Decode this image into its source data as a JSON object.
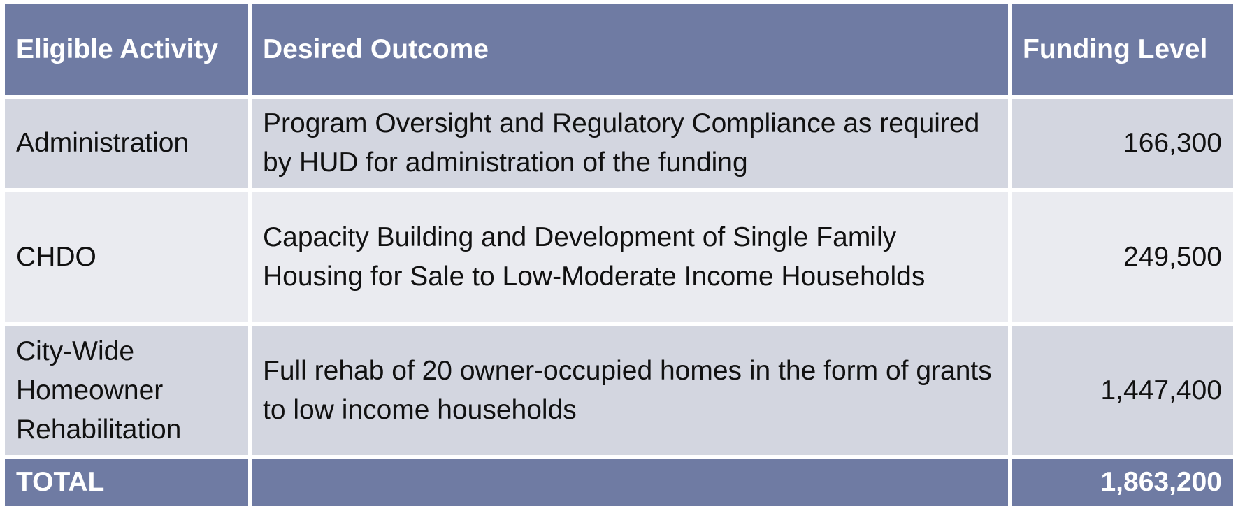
{
  "table": {
    "header": [
      "Eligible Activity",
      "Desired Outcome",
      "Funding Level"
    ],
    "rows": [
      [
        "Administration",
        "Program Oversight and Regulatory Compliance as required by HUD for administration of the funding",
        "166,300"
      ],
      [
        "CHDO",
        "Capacity Building and Development of Single Family Housing for Sale to Low-Moderate Income Households",
        "249,500"
      ],
      [
        "City-Wide Homeowner Rehabilitation",
        "Full rehab of 20 owner-occupied homes in the form of grants to low income households",
        "1,447,400"
      ]
    ],
    "total": {
      "label": "TOTAL",
      "amount": "1,863,200"
    }
  }
}
